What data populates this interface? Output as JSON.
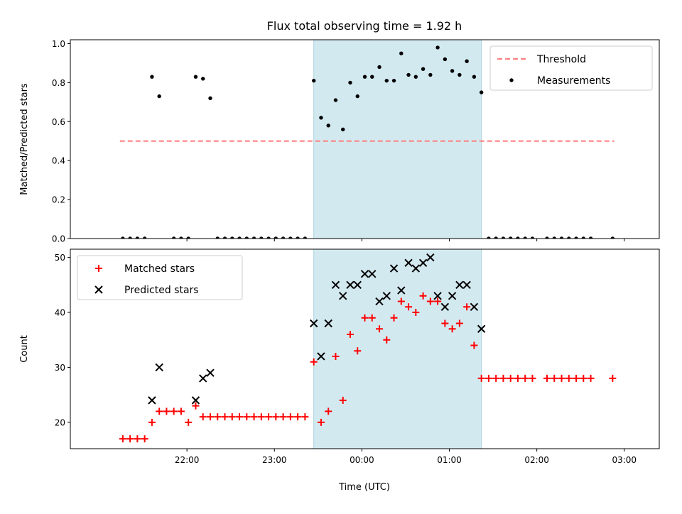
{
  "chart_data": {
    "type": "scatter",
    "title": "Flux total observing time = 1.92 h",
    "xlabel": "Time (UTC)",
    "x_unit": "minutes relative to 00:00 UTC",
    "xlim": [
      -200,
      204
    ],
    "x_ticks": [
      {
        "value": -120,
        "label": "22:00"
      },
      {
        "value": -60,
        "label": "23:00"
      },
      {
        "value": 0,
        "label": "00:00"
      },
      {
        "value": 60,
        "label": "01:00"
      },
      {
        "value": 120,
        "label": "02:00"
      },
      {
        "value": 180,
        "label": "03:00"
      }
    ],
    "shaded_interval": {
      "start": -33,
      "end": 82,
      "color": "#d3e9f0"
    },
    "panels": [
      {
        "ylabel": "Matched/Predicted stars",
        "ylim": [
          0,
          1.02
        ],
        "yticks": [
          0.0,
          0.2,
          0.4,
          0.6,
          0.8,
          1.0
        ],
        "ytick_labels": [
          "0.0",
          "0.2",
          "0.4",
          "0.6",
          "0.8",
          "1.0"
        ],
        "legend_position": "upper right",
        "series": [
          {
            "name": "Threshold",
            "type": "line",
            "style": "dashed",
            "color": "#ff7f7f",
            "x": [
              -166,
              173
            ],
            "y": [
              0.5,
              0.5
            ]
          },
          {
            "name": "Measurements",
            "type": "scatter",
            "marker": "dot",
            "color": "#000000",
            "x": [
              -164,
              -159,
              -154,
              -149,
              -144,
              -139,
              -129,
              -124,
              -119,
              -114,
              -109,
              -104,
              -99,
              -94,
              -89,
              -84,
              -79,
              -74,
              -69,
              -64,
              -59,
              -54,
              -49,
              -44,
              -39,
              -33,
              -28,
              -23,
              -18,
              -13,
              -8,
              -3,
              2,
              7,
              12,
              17,
              22,
              27,
              32,
              37,
              42,
              47,
              52,
              57,
              62,
              67,
              72,
              77,
              82,
              87,
              92,
              97,
              102,
              107,
              112,
              117,
              127,
              132,
              137,
              142,
              147,
              152,
              157,
              172
            ],
            "y": [
              0,
              0,
              0,
              0,
              0.83,
              0.73,
              0,
              0,
              0,
              0.83,
              0.82,
              0.72,
              0,
              0,
              0,
              0,
              0,
              0,
              0,
              0,
              0,
              0,
              0,
              0,
              0,
              0.81,
              0.62,
              0.58,
              0.71,
              0.56,
              0.8,
              0.73,
              0.83,
              0.83,
              0.88,
              0.81,
              0.81,
              0.95,
              0.84,
              0.83,
              0.87,
              0.84,
              0.98,
              0.92,
              0.86,
              0.84,
              0.91,
              0.83,
              0.75,
              0,
              0,
              0,
              0,
              0,
              0,
              0,
              0,
              0,
              0,
              0,
              0,
              0,
              0,
              0
            ]
          }
        ]
      },
      {
        "ylabel": "Count",
        "ylim": [
          15.2,
          51.5
        ],
        "yticks": [
          20,
          30,
          40,
          50
        ],
        "ytick_labels": [
          "20",
          "30",
          "40",
          "50"
        ],
        "legend_position": "upper left",
        "series": [
          {
            "name": "Matched stars",
            "type": "scatter",
            "marker": "plus",
            "color": "#ff0000",
            "x": [
              -164,
              -159,
              -154,
              -149,
              -144,
              -139,
              -134,
              -129,
              -124,
              -119,
              -114,
              -109,
              -104,
              -99,
              -94,
              -89,
              -84,
              -79,
              -74,
              -69,
              -64,
              -59,
              -54,
              -49,
              -44,
              -39,
              -33,
              -28,
              -23,
              -18,
              -13,
              -8,
              -3,
              2,
              7,
              12,
              17,
              22,
              27,
              32,
              37,
              42,
              47,
              52,
              57,
              62,
              67,
              72,
              77,
              82,
              87,
              92,
              97,
              102,
              107,
              112,
              117,
              127,
              132,
              137,
              142,
              147,
              152,
              157,
              172
            ],
            "y": [
              17,
              17,
              17,
              17,
              20,
              22,
              22,
              22,
              22,
              20,
              23,
              21,
              21,
              21,
              21,
              21,
              21,
              21,
              21,
              21,
              21,
              21,
              21,
              21,
              21,
              21,
              31,
              20,
              22,
              32,
              24,
              36,
              33,
              39,
              39,
              37,
              35,
              39,
              42,
              41,
              40,
              43,
              42,
              42,
              38,
              37,
              38,
              41,
              34,
              28,
              28,
              28,
              28,
              28,
              28,
              28,
              28,
              28,
              28,
              28,
              28,
              28,
              28,
              28,
              28
            ]
          },
          {
            "name": "Predicted stars",
            "type": "scatter",
            "marker": "x",
            "color": "#000000",
            "x": [
              -144,
              -139,
              -114,
              -109,
              -104,
              -33,
              -28,
              -23,
              -18,
              -13,
              -8,
              -3,
              2,
              7,
              12,
              17,
              22,
              27,
              32,
              37,
              42,
              47,
              52,
              57,
              62,
              67,
              72,
              77,
              82
            ],
            "y": [
              24,
              30,
              24,
              28,
              29,
              38,
              32,
              38,
              45,
              43,
              45,
              45,
              47,
              47,
              42,
              43,
              48,
              44,
              49,
              48,
              49,
              50,
              43,
              41,
              43,
              45,
              45,
              41,
              37
            ]
          }
        ]
      }
    ]
  }
}
